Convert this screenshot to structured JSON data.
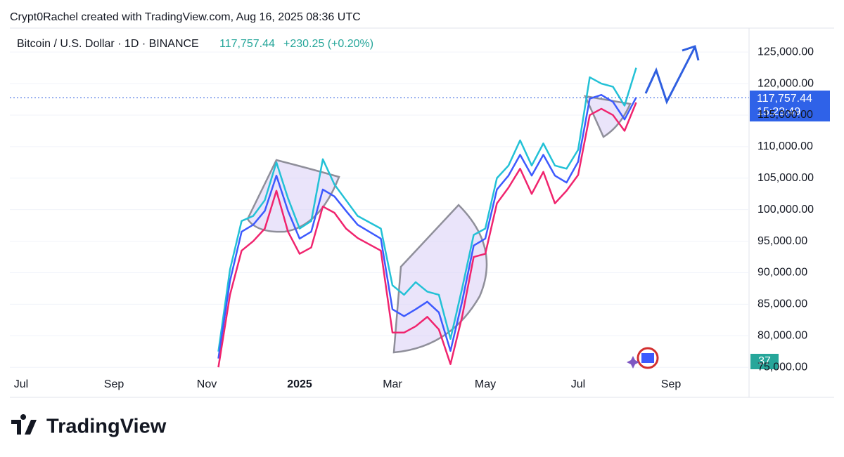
{
  "chart_data": {
    "type": "line",
    "attribution": "Crypt0Rachel created with TradingView.com, Aug 16, 2025 08:36 UTC",
    "title": "Bitcoin / U.S. Dollar · 1D · BINANCE",
    "last_price": {
      "value": 117757.44,
      "label": "117,757.44"
    },
    "change": "+230.25 (+0.20%)",
    "countdown": "15:23:49",
    "badge": "37",
    "brand": "TradingView",
    "categories": [
      "Jul",
      null,
      null,
      null,
      null,
      null,
      null,
      null,
      "Sep",
      null,
      null,
      null,
      null,
      null,
      null,
      null,
      "Nov",
      null,
      null,
      null,
      null,
      null,
      null,
      null,
      "2025",
      null,
      null,
      null,
      null,
      null,
      null,
      null,
      "Mar",
      null,
      null,
      null,
      null,
      null,
      null,
      null,
      "May",
      null,
      null,
      null,
      null,
      null,
      null,
      null,
      "Jul",
      null,
      null,
      null,
      null,
      null,
      null,
      null,
      "Sep",
      null,
      null,
      null,
      null,
      null,
      null
    ],
    "series": [
      {
        "color": "#22c1d6",
        "values": [
          null,
          null,
          null,
          null,
          null,
          null,
          null,
          null,
          null,
          null,
          null,
          null,
          null,
          null,
          null,
          null,
          null,
          77500,
          90500,
          98200,
          99000,
          101500,
          107500,
          101800,
          97000,
          98200,
          108000,
          104000,
          101500,
          99000,
          98000,
          97000,
          88000,
          86500,
          88500,
          87000,
          86500,
          79500,
          87500,
          96000,
          97000,
          105000,
          107000,
          111000,
          107000,
          110500,
          107000,
          106500,
          109500,
          121000,
          120000,
          119500,
          116500,
          122500,
          null,
          null,
          null,
          null,
          null,
          null,
          null,
          null,
          null
        ]
      },
      {
        "color": "#3d5afe",
        "values": [
          null,
          null,
          null,
          null,
          null,
          null,
          null,
          null,
          null,
          null,
          null,
          null,
          null,
          null,
          null,
          null,
          null,
          76400,
          88700,
          96500,
          97600,
          99800,
          105400,
          99800,
          95400,
          96500,
          103200,
          102100,
          99800,
          97600,
          96500,
          95400,
          84200,
          83100,
          84200,
          85400,
          83700,
          77600,
          85400,
          94300,
          95400,
          103200,
          105400,
          108700,
          105400,
          108700,
          105400,
          104300,
          107600,
          117600,
          118200,
          117100,
          114300,
          117800,
          null,
          null,
          null,
          null,
          null,
          null,
          null,
          null,
          null
        ]
      },
      {
        "color": "#f0246e",
        "values": [
          null,
          null,
          null,
          null,
          null,
          null,
          null,
          null,
          null,
          null,
          null,
          null,
          null,
          null,
          null,
          null,
          null,
          75000,
          86500,
          93500,
          95000,
          97000,
          103000,
          96500,
          93000,
          94000,
          100500,
          99500,
          97000,
          95500,
          94500,
          93500,
          80500,
          80500,
          81500,
          83000,
          81000,
          75500,
          83000,
          92500,
          93000,
          101000,
          103500,
          106500,
          102500,
          106000,
          101000,
          103000,
          105500,
          115000,
          116000,
          115000,
          112500,
          117000,
          null,
          null,
          null,
          null,
          null,
          null,
          null,
          null,
          null
        ]
      }
    ],
    "ylim": [
      74800,
      128800
    ],
    "yticks": [
      {
        "value": 75000,
        "label": "75,000.00"
      },
      {
        "value": 80000,
        "label": "80,000.00"
      },
      {
        "value": 85000,
        "label": "85,000.00"
      },
      {
        "value": 90000,
        "label": "90,000.00"
      },
      {
        "value": 95000,
        "label": "95,000.00"
      },
      {
        "value": 100000,
        "label": "100,000.00"
      },
      {
        "value": 105000,
        "label": "105,000.00"
      },
      {
        "value": 110000,
        "label": "110,000.00"
      },
      {
        "value": 115000,
        "label": "115,000.00"
      },
      {
        "value": 120000,
        "label": "120,000.00"
      },
      {
        "value": 125000,
        "label": "125,000.00"
      }
    ],
    "grid": true
  }
}
